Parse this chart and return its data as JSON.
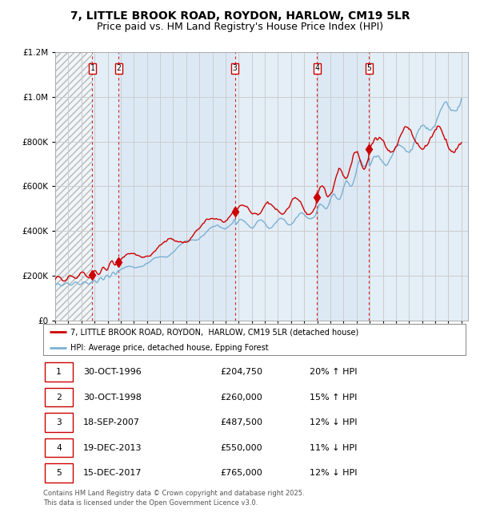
{
  "title": "7, LITTLE BROOK ROAD, ROYDON, HARLOW, CM19 5LR",
  "subtitle": "Price paid vs. HM Land Registry's House Price Index (HPI)",
  "legend_house": "7, LITTLE BROOK ROAD, ROYDON,  HARLOW, CM19 5LR (detached house)",
  "legend_hpi": "HPI: Average price, detached house, Epping Forest",
  "footer1": "Contains HM Land Registry data © Crown copyright and database right 2025.",
  "footer2": "This data is licensed under the Open Government Licence v3.0.",
  "transactions": [
    {
      "num": 1,
      "date": "30-OCT-1996",
      "price": 204750,
      "pct": "20%",
      "dir": "↑"
    },
    {
      "num": 2,
      "date": "30-OCT-1998",
      "price": 260000,
      "pct": "15%",
      "dir": "↑"
    },
    {
      "num": 3,
      "date": "18-SEP-2007",
      "price": 487500,
      "pct": "12%",
      "dir": "↓"
    },
    {
      "num": 4,
      "date": "19-DEC-2013",
      "price": 550000,
      "pct": "11%",
      "dir": "↓"
    },
    {
      "num": 5,
      "date": "15-DEC-2017",
      "price": 765000,
      "pct": "12%",
      "dir": "↓"
    }
  ],
  "transaction_years": [
    1996.83,
    1998.83,
    2007.72,
    2013.97,
    2017.96
  ],
  "transaction_prices": [
    204750,
    260000,
    487500,
    550000,
    765000
  ],
  "year_start": 1994,
  "year_end": 2025,
  "ylim": [
    0,
    1200000
  ],
  "house_color": "#cc0000",
  "hpi_color": "#7ab0d4",
  "bg_color": "#dce9f5",
  "vline_color": "#cc0000",
  "grid_color": "#cccccc",
  "title_fontsize": 10,
  "subtitle_fontsize": 9
}
